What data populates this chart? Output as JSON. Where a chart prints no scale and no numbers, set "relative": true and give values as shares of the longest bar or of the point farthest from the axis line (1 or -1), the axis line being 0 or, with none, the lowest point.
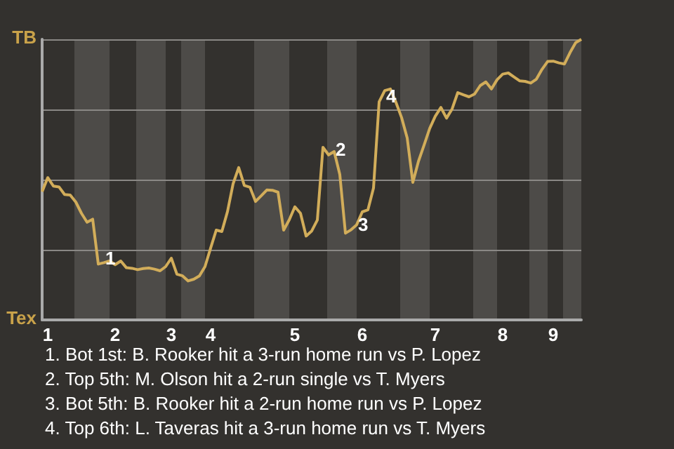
{
  "chart_data": {
    "type": "line",
    "relative": true,
    "categories": [
      null,
      "1",
      null,
      null,
      null,
      null,
      null,
      null,
      null,
      null,
      null,
      null,
      null,
      "2",
      null,
      null,
      null,
      null,
      null,
      null,
      null,
      null,
      null,
      "3",
      null,
      null,
      null,
      null,
      null,
      null,
      "4",
      null,
      null,
      null,
      null,
      null,
      null,
      null,
      null,
      null,
      null,
      null,
      null,
      null,
      null,
      "5",
      null,
      null,
      null,
      null,
      null,
      null,
      null,
      null,
      null,
      null,
      null,
      "6",
      null,
      null,
      null,
      null,
      null,
      null,
      null,
      null,
      null,
      null,
      null,
      null,
      "7",
      null,
      null,
      null,
      null,
      null,
      null,
      null,
      null,
      null,
      null,
      null,
      "8",
      null,
      null,
      null,
      null,
      null,
      null,
      null,
      null,
      "9",
      null,
      null,
      null,
      null,
      null
    ],
    "series": [
      {
        "color": "#d2ad5a",
        "values": [
          0.457,
          0.507,
          0.477,
          0.474,
          0.447,
          0.445,
          0.42,
          0.38,
          0.348,
          0.359,
          0.199,
          0.204,
          0.21,
          0.197,
          0.21,
          0.186,
          0.184,
          0.179,
          0.183,
          0.185,
          0.181,
          0.175,
          0.19,
          0.22,
          0.163,
          0.157,
          0.139,
          0.145,
          0.157,
          0.19,
          0.256,
          0.32,
          0.315,
          0.386,
          0.485,
          0.543,
          0.479,
          0.473,
          0.422,
          0.442,
          0.463,
          0.462,
          0.455,
          0.32,
          0.357,
          0.403,
          0.38,
          0.299,
          0.317,
          0.356,
          0.615,
          0.588,
          0.6,
          0.518,
          0.309,
          0.321,
          0.339,
          0.385,
          0.392,
          0.47,
          0.777,
          0.817,
          0.823,
          0.775,
          0.721,
          0.648,
          0.49,
          0.565,
          0.623,
          0.682,
          0.726,
          0.757,
          0.719,
          0.752,
          0.81,
          0.802,
          0.795,
          0.805,
          0.835,
          0.848,
          0.823,
          0.856,
          0.876,
          0.88,
          0.866,
          0.852,
          0.85,
          0.844,
          0.858,
          0.893,
          0.921,
          0.922,
          0.916,
          0.912,
          0.953,
          0.988,
          1
        ],
        "name": null
      }
    ],
    "grid": "y",
    "annotations": [
      {
        "text": "1",
        "y": 0.199
      },
      {
        "text": "2",
        "y": 0.588
      },
      {
        "text": "3",
        "y": 0.321
      },
      {
        "text": "4",
        "y": 0.777
      },
      "TB",
      "Tex",
      "1. Bot 1st: B. Rooker hit a 3-run home run vs P. Lopez",
      "2. Top 5th: M. Olson hit a 2-run single vs T. Myers",
      "3. Bot 5th: B. Rooker hit a 2-run home run vs P. Lopez",
      "4. Top 6th: L. Taveras hit a 3-run home run vs T. Myers"
    ]
  }
}
